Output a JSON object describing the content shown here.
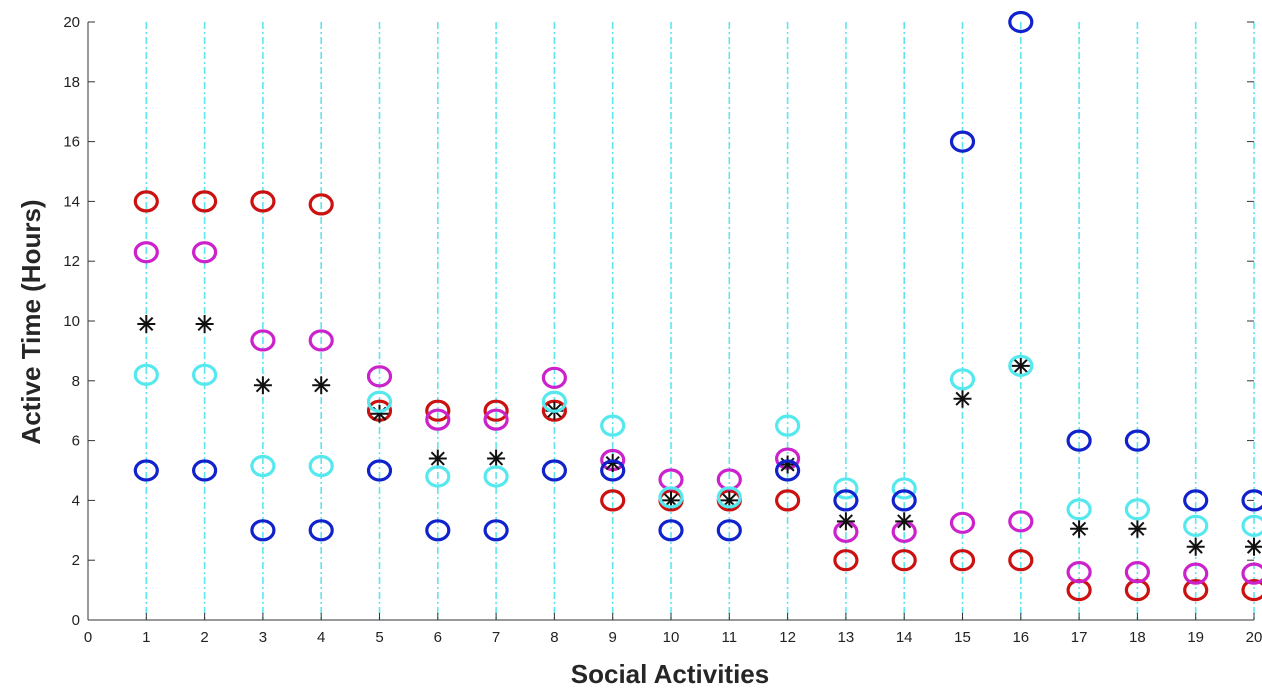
{
  "chart_data": {
    "type": "scatter",
    "title": "",
    "xlabel": "Social Activities",
    "ylabel": "Active Time (Hours)",
    "xlim": [
      0,
      20
    ],
    "ylim": [
      0,
      20
    ],
    "x_ticks": [
      0,
      1,
      2,
      3,
      4,
      5,
      6,
      7,
      8,
      9,
      10,
      11,
      12,
      13,
      14,
      15,
      16,
      17,
      18,
      19,
      20
    ],
    "y_ticks": [
      0,
      2,
      4,
      6,
      8,
      10,
      12,
      14,
      16,
      18,
      20
    ],
    "vertical_gridlines": "dash-dot cyan at each x tick",
    "x": [
      1,
      2,
      3,
      4,
      5,
      6,
      7,
      8,
      9,
      10,
      11,
      12,
      13,
      14,
      15,
      16,
      17,
      18,
      19,
      20
    ],
    "series": [
      {
        "color": "#cc1111",
        "marker": "circle",
        "values": [
          14,
          14,
          14,
          13.9,
          7,
          7,
          7,
          7,
          4,
          4,
          4,
          4,
          2,
          2,
          2,
          2,
          1,
          1,
          1,
          1
        ]
      },
      {
        "color": "#cc22cc",
        "marker": "circle",
        "values": [
          12.3,
          12.3,
          9.35,
          9.35,
          8.15,
          6.7,
          6.7,
          8.1,
          5.35,
          4.7,
          4.7,
          5.4,
          2.95,
          2.95,
          3.25,
          3.3,
          1.6,
          1.6,
          1.55,
          1.55
        ]
      },
      {
        "color": "#111111",
        "marker": "asterisk",
        "values": [
          9.9,
          9.9,
          7.85,
          7.85,
          6.9,
          5.4,
          5.4,
          7,
          5.25,
          4,
          4,
          5.2,
          3.3,
          3.3,
          7.4,
          8.5,
          3.05,
          3.05,
          2.45,
          2.45
        ]
      },
      {
        "color": "#55e8ee",
        "marker": "circle",
        "values": [
          8.2,
          8.2,
          5.15,
          5.15,
          7.3,
          4.8,
          4.8,
          7.3,
          6.5,
          4.1,
          4.1,
          6.5,
          4.4,
          4.4,
          8.05,
          8.5,
          3.7,
          3.7,
          3.15,
          3.15
        ]
      },
      {
        "color": "#1122cc",
        "marker": "circle",
        "values": [
          5,
          5,
          3,
          3,
          5,
          3,
          3,
          5,
          5,
          3,
          3,
          5,
          4,
          4,
          16,
          20,
          6,
          6,
          4,
          4
        ]
      }
    ]
  }
}
